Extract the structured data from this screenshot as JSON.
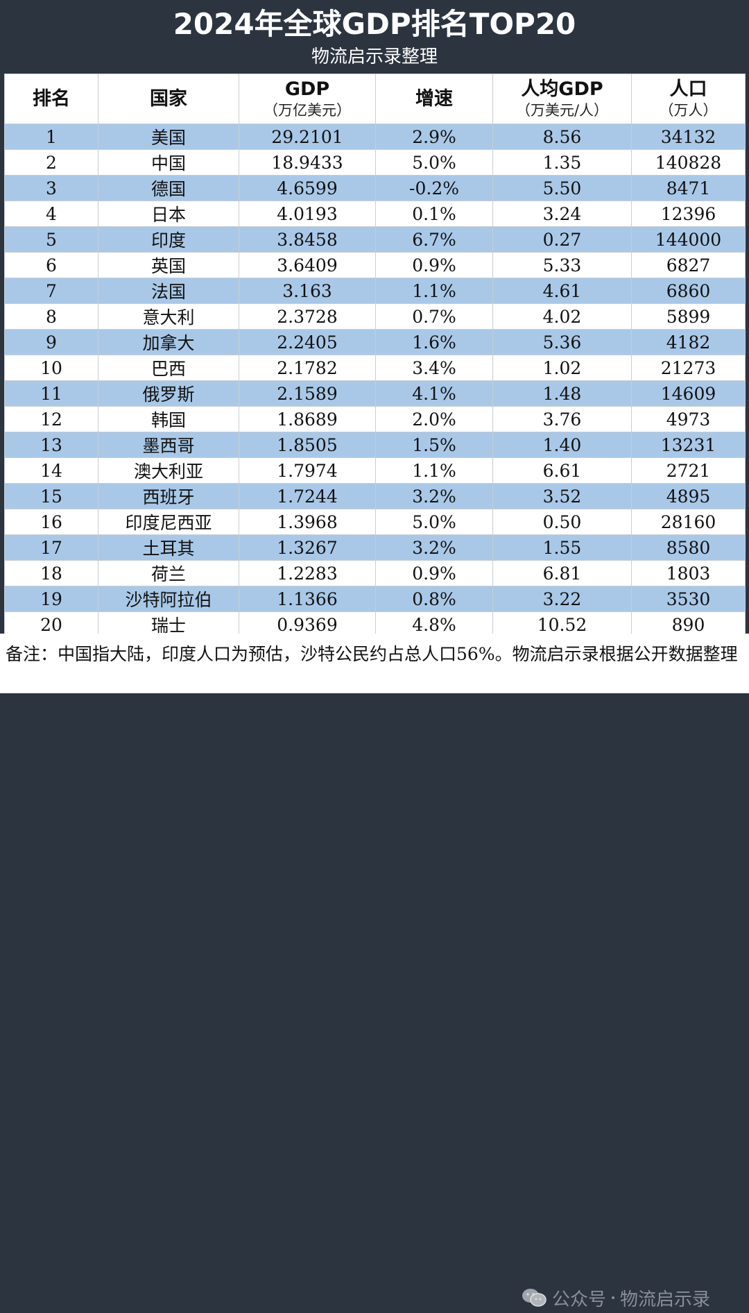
{
  "header": {
    "title": "2024年全球GDP排名TOP20",
    "subtitle": "物流启示录整理"
  },
  "table": {
    "columns": [
      {
        "label": "排名",
        "unit": ""
      },
      {
        "label": "国家",
        "unit": ""
      },
      {
        "label": "GDP",
        "unit": "（万亿美元）"
      },
      {
        "label": "增速",
        "unit": ""
      },
      {
        "label": "人均GDP",
        "unit": "（万美元/人）"
      },
      {
        "label": "人口",
        "unit": "（万人）"
      }
    ],
    "rows": [
      [
        "1",
        "美国",
        "29.2101",
        "2.9%",
        "8.56",
        "34132"
      ],
      [
        "2",
        "中国",
        "18.9433",
        "5.0%",
        "1.35",
        "140828"
      ],
      [
        "3",
        "德国",
        "4.6599",
        "-0.2%",
        "5.50",
        "8471"
      ],
      [
        "4",
        "日本",
        "4.0193",
        "0.1%",
        "3.24",
        "12396"
      ],
      [
        "5",
        "印度",
        "3.8458",
        "6.7%",
        "0.27",
        "144000"
      ],
      [
        "6",
        "英国",
        "3.6409",
        "0.9%",
        "5.33",
        "6827"
      ],
      [
        "7",
        "法国",
        "3.163",
        "1.1%",
        "4.61",
        "6860"
      ],
      [
        "8",
        "意大利",
        "2.3728",
        "0.7%",
        "4.02",
        "5899"
      ],
      [
        "9",
        "加拿大",
        "2.2405",
        "1.6%",
        "5.36",
        "4182"
      ],
      [
        "10",
        "巴西",
        "2.1782",
        "3.4%",
        "1.02",
        "21273"
      ],
      [
        "11",
        "俄罗斯",
        "2.1589",
        "4.1%",
        "1.48",
        "14609"
      ],
      [
        "12",
        "韩国",
        "1.8689",
        "2.0%",
        "3.76",
        "4973"
      ],
      [
        "13",
        "墨西哥",
        "1.8505",
        "1.5%",
        "1.40",
        "13231"
      ],
      [
        "14",
        "澳大利亚",
        "1.7974",
        "1.1%",
        "6.61",
        "2721"
      ],
      [
        "15",
        "西班牙",
        "1.7244",
        "3.2%",
        "3.52",
        "4895"
      ],
      [
        "16",
        "印度尼西亚",
        "1.3968",
        "5.0%",
        "0.50",
        "28160"
      ],
      [
        "17",
        "土耳其",
        "1.3267",
        "3.2%",
        "1.55",
        "8580"
      ],
      [
        "18",
        "荷兰",
        "1.2283",
        "0.9%",
        "6.81",
        "1803"
      ],
      [
        "19",
        "沙特阿拉伯",
        "1.1366",
        "0.8%",
        "3.22",
        "3530"
      ],
      [
        "20",
        "瑞士",
        "0.9369",
        "4.8%",
        "10.52",
        "890"
      ]
    ]
  },
  "note": {
    "text": "备注：中国指大陆，印度人口为预估，沙特公民约占总人口56%。物流启示录根据公开数据整理"
  },
  "watermark": {
    "icon": "wechat-icon",
    "account": "公众号",
    "name": "物流启示录"
  },
  "colors": {
    "header_bg": "#2c3440",
    "stripe": "#a9c8e8",
    "white": "#ffffff"
  }
}
